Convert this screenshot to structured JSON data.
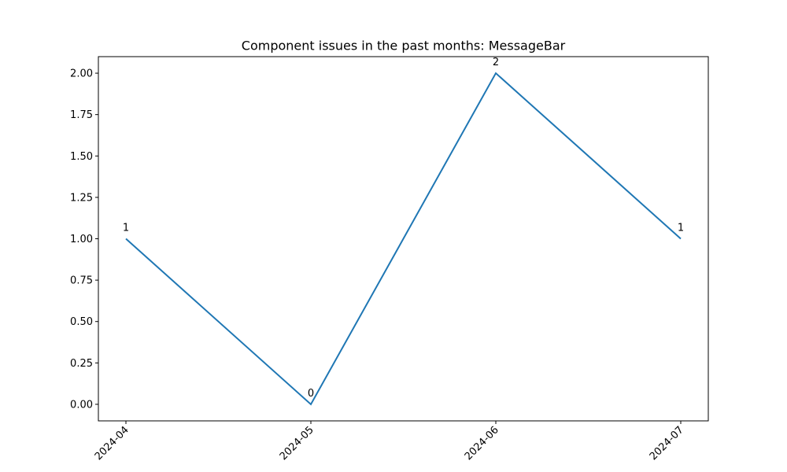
{
  "chart_data": {
    "type": "line",
    "title": "Component issues in the past months: MessageBar",
    "xlabel": "",
    "ylabel": "",
    "categories": [
      "2024-04",
      "2024-05",
      "2024-06",
      "2024-07"
    ],
    "series": [
      {
        "values": [
          1,
          0,
          2,
          1
        ],
        "color": "#1f77b4"
      }
    ],
    "data_labels": [
      "1",
      "0",
      "2",
      "1"
    ],
    "y_ticks": [
      "0.00",
      "0.25",
      "0.50",
      "0.75",
      "1.00",
      "1.25",
      "1.50",
      "1.75",
      "2.00"
    ],
    "ylim": [
      -0.1,
      2.1
    ],
    "grid": false,
    "legend": false,
    "x_tick_rotation_deg": 45
  }
}
